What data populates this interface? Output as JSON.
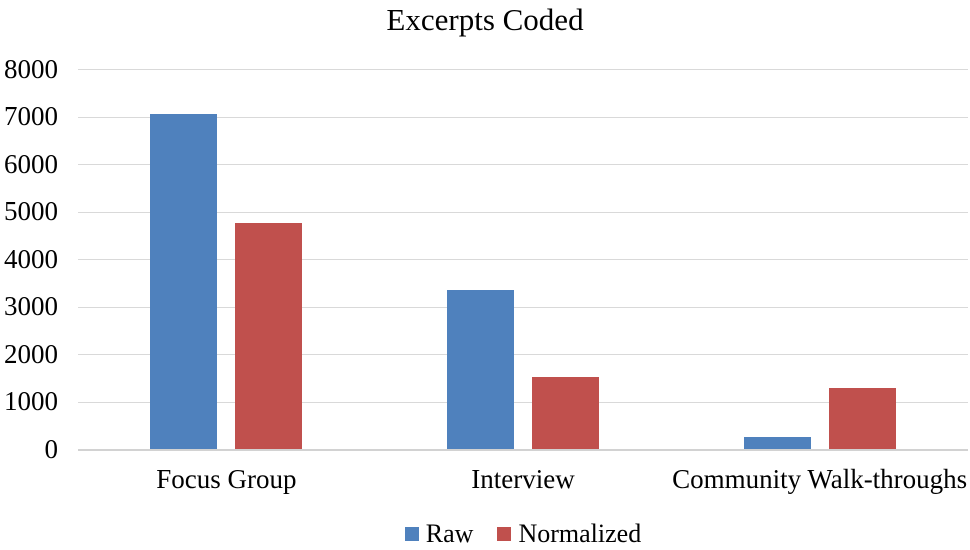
{
  "chart_data": {
    "type": "bar",
    "title": "Excerpts Coded",
    "categories": [
      "Focus Group",
      "Interview",
      "Community Walk-throughs"
    ],
    "series": [
      {
        "name": "Raw",
        "color": "#4F81BD",
        "values": [
          7050,
          3340,
          250
        ]
      },
      {
        "name": "Normalized",
        "color": "#C0504D",
        "values": [
          4750,
          1520,
          1280
        ]
      }
    ],
    "xlabel": "",
    "ylabel": "",
    "ylim": [
      0,
      8000
    ],
    "yticks": [
      0,
      1000,
      2000,
      3000,
      4000,
      5000,
      6000,
      7000,
      8000
    ],
    "grid": "horizontal",
    "gridline_color": "#D9D9D9",
    "axis_line_color": "#D2D2D2",
    "text_color": "#000000",
    "legend_position": "bottom"
  }
}
